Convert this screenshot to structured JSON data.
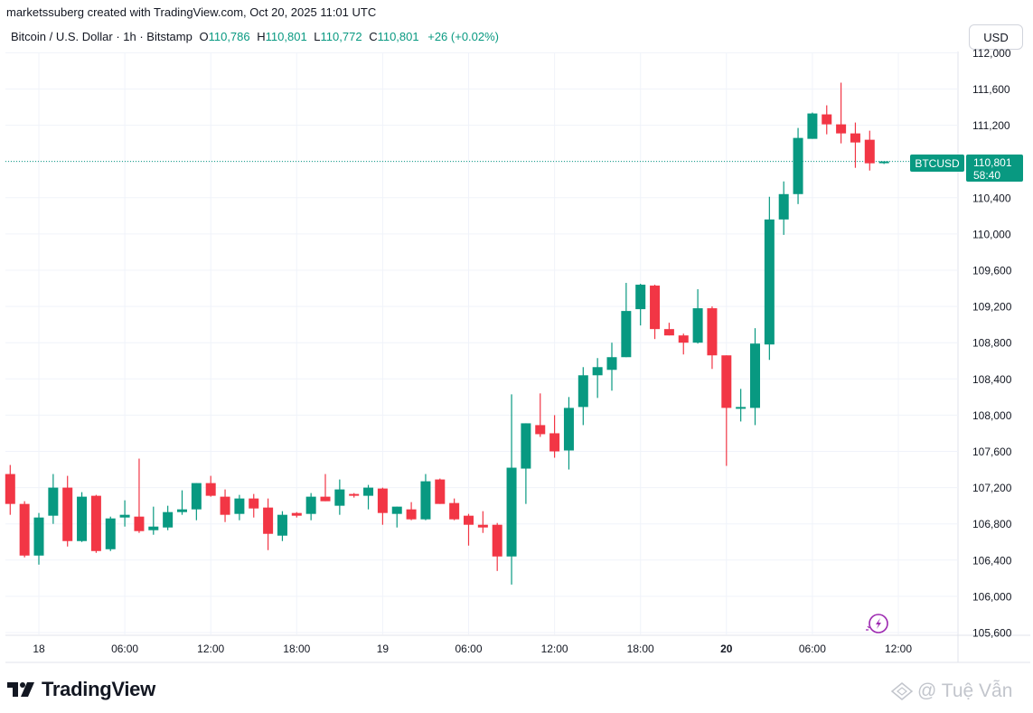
{
  "header": {
    "credit": "marketssuberg created with TradingView.com, Oct 20, 2025 11:01 UTC",
    "symbol": "Bitcoin / U.S. Dollar · 1h · Bitstamp",
    "ohlc": [
      {
        "label": "O",
        "value": "110,786"
      },
      {
        "label": "H",
        "value": "110,801"
      },
      {
        "label": "L",
        "value": "110,772"
      },
      {
        "label": "C",
        "value": "110,801"
      }
    ],
    "change": "+26 (+0.02%)",
    "currency_button": "USD"
  },
  "price_tag": {
    "symbol": "BTCUSD",
    "price": "110,801",
    "countdown": "58:40"
  },
  "footer": {
    "logo_text": "TradingView",
    "watermark": "@ Tuệ Vẫn"
  },
  "colors": {
    "up": "#089981",
    "down": "#f23645",
    "grid": "#f0f3fa",
    "axis_text": "#131722"
  },
  "chart_data": {
    "type": "candlestick",
    "interval": "1h",
    "y_axis": {
      "min": 105600,
      "max": 112000,
      "ticks": [
        "105,600",
        "106,000",
        "106,400",
        "106,800",
        "107,200",
        "107,600",
        "108,000",
        "108,400",
        "108,800",
        "109,200",
        "109,600",
        "110,000",
        "110,400",
        "110,800",
        "111,200",
        "111,600",
        "112,000"
      ]
    },
    "x_axis": {
      "ticks": [
        {
          "label": "18",
          "hour": 0,
          "bold": false
        },
        {
          "label": "06:00",
          "hour": 6,
          "bold": false
        },
        {
          "label": "12:00",
          "hour": 12,
          "bold": false
        },
        {
          "label": "18:00",
          "hour": 18,
          "bold": false
        },
        {
          "label": "19",
          "hour": 24,
          "bold": false
        },
        {
          "label": "06:00",
          "hour": 30,
          "bold": false
        },
        {
          "label": "12:00",
          "hour": 36,
          "bold": false
        },
        {
          "label": "18:00",
          "hour": 42,
          "bold": false
        },
        {
          "label": "20",
          "hour": 48,
          "bold": true
        },
        {
          "label": "06:00",
          "hour": 54,
          "bold": false
        },
        {
          "label": "12:00",
          "hour": 60,
          "bold": false
        }
      ]
    },
    "first_candle_hour": -2,
    "last_price": 110801,
    "candles": [
      {
        "o": 107350,
        "h": 107450,
        "l": 106900,
        "c": 107020
      },
      {
        "o": 107020,
        "h": 107050,
        "l": 106430,
        "c": 106450
      },
      {
        "o": 106450,
        "h": 106920,
        "l": 106350,
        "c": 106870
      },
      {
        "o": 106890,
        "h": 107350,
        "l": 106800,
        "c": 107200
      },
      {
        "o": 107200,
        "h": 107330,
        "l": 106550,
        "c": 106610
      },
      {
        "o": 106610,
        "h": 107150,
        "l": 106600,
        "c": 107100
      },
      {
        "o": 107110,
        "h": 107120,
        "l": 106480,
        "c": 106500
      },
      {
        "o": 106520,
        "h": 106880,
        "l": 106500,
        "c": 106860
      },
      {
        "o": 106870,
        "h": 107060,
        "l": 106770,
        "c": 106900
      },
      {
        "o": 106880,
        "h": 107520,
        "l": 106700,
        "c": 106720
      },
      {
        "o": 106730,
        "h": 106990,
        "l": 106680,
        "c": 106770
      },
      {
        "o": 106760,
        "h": 107000,
        "l": 106730,
        "c": 106930
      },
      {
        "o": 106930,
        "h": 107170,
        "l": 106900,
        "c": 106960
      },
      {
        "o": 106960,
        "h": 107250,
        "l": 106840,
        "c": 107250
      },
      {
        "o": 107250,
        "h": 107330,
        "l": 107100,
        "c": 107110
      },
      {
        "o": 107100,
        "h": 107180,
        "l": 106820,
        "c": 106900
      },
      {
        "o": 106910,
        "h": 107120,
        "l": 106840,
        "c": 107080
      },
      {
        "o": 107080,
        "h": 107130,
        "l": 106870,
        "c": 106970
      },
      {
        "o": 106980,
        "h": 107080,
        "l": 106510,
        "c": 106690
      },
      {
        "o": 106670,
        "h": 106940,
        "l": 106610,
        "c": 106900
      },
      {
        "o": 106920,
        "h": 106930,
        "l": 106870,
        "c": 106890
      },
      {
        "o": 106910,
        "h": 107140,
        "l": 106840,
        "c": 107100
      },
      {
        "o": 107100,
        "h": 107350,
        "l": 107050,
        "c": 107050
      },
      {
        "o": 107000,
        "h": 107290,
        "l": 106900,
        "c": 107180
      },
      {
        "o": 107130,
        "h": 107140,
        "l": 107090,
        "c": 107110
      },
      {
        "o": 107110,
        "h": 107230,
        "l": 106960,
        "c": 107200
      },
      {
        "o": 107190,
        "h": 107200,
        "l": 106790,
        "c": 106920
      },
      {
        "o": 106910,
        "h": 106980,
        "l": 106760,
        "c": 106990
      },
      {
        "o": 106960,
        "h": 107040,
        "l": 106840,
        "c": 106850
      },
      {
        "o": 106850,
        "h": 107350,
        "l": 106840,
        "c": 107270
      },
      {
        "o": 107290,
        "h": 107300,
        "l": 107020,
        "c": 107020
      },
      {
        "o": 107030,
        "h": 107080,
        "l": 106840,
        "c": 106850
      },
      {
        "o": 106890,
        "h": 106910,
        "l": 106560,
        "c": 106790
      },
      {
        "o": 106790,
        "h": 106940,
        "l": 106700,
        "c": 106760
      },
      {
        "o": 106790,
        "h": 106810,
        "l": 106280,
        "c": 106440
      },
      {
        "o": 106440,
        "h": 108230,
        "l": 106130,
        "c": 107420
      },
      {
        "o": 107410,
        "h": 107910,
        "l": 107020,
        "c": 107910
      },
      {
        "o": 107890,
        "h": 108240,
        "l": 107760,
        "c": 107790
      },
      {
        "o": 107800,
        "h": 108000,
        "l": 107530,
        "c": 107600
      },
      {
        "o": 107610,
        "h": 108200,
        "l": 107400,
        "c": 108080
      },
      {
        "o": 108090,
        "h": 108530,
        "l": 107890,
        "c": 108440
      },
      {
        "o": 108440,
        "h": 108630,
        "l": 108190,
        "c": 108530
      },
      {
        "o": 108500,
        "h": 108800,
        "l": 108270,
        "c": 108640
      },
      {
        "o": 108640,
        "h": 109460,
        "l": 108650,
        "c": 109150
      },
      {
        "o": 109170,
        "h": 109450,
        "l": 108990,
        "c": 109440
      },
      {
        "o": 109430,
        "h": 109440,
        "l": 108840,
        "c": 108950
      },
      {
        "o": 108950,
        "h": 109020,
        "l": 108880,
        "c": 108880
      },
      {
        "o": 108880,
        "h": 108900,
        "l": 108670,
        "c": 108800
      },
      {
        "o": 108800,
        "h": 109390,
        "l": 108790,
        "c": 109180
      },
      {
        "o": 109180,
        "h": 109200,
        "l": 108510,
        "c": 108660
      },
      {
        "o": 108660,
        "h": 108650,
        "l": 107440,
        "c": 108080
      },
      {
        "o": 108080,
        "h": 108290,
        "l": 107930,
        "c": 108090
      },
      {
        "o": 108080,
        "h": 108960,
        "l": 107890,
        "c": 108790
      },
      {
        "o": 108780,
        "h": 110410,
        "l": 108610,
        "c": 110160
      },
      {
        "o": 110160,
        "h": 110580,
        "l": 109990,
        "c": 110440
      },
      {
        "o": 110440,
        "h": 111170,
        "l": 110330,
        "c": 111060
      },
      {
        "o": 111050,
        "h": 111340,
        "l": 111050,
        "c": 111330
      },
      {
        "o": 111320,
        "h": 111420,
        "l": 111100,
        "c": 111210
      },
      {
        "o": 111210,
        "h": 111670,
        "l": 111000,
        "c": 111110
      },
      {
        "o": 111110,
        "h": 111230,
        "l": 110730,
        "c": 111010
      },
      {
        "o": 111040,
        "h": 111140,
        "l": 110700,
        "c": 110780
      },
      {
        "o": 110786,
        "h": 110801,
        "l": 110772,
        "c": 110801
      }
    ]
  }
}
